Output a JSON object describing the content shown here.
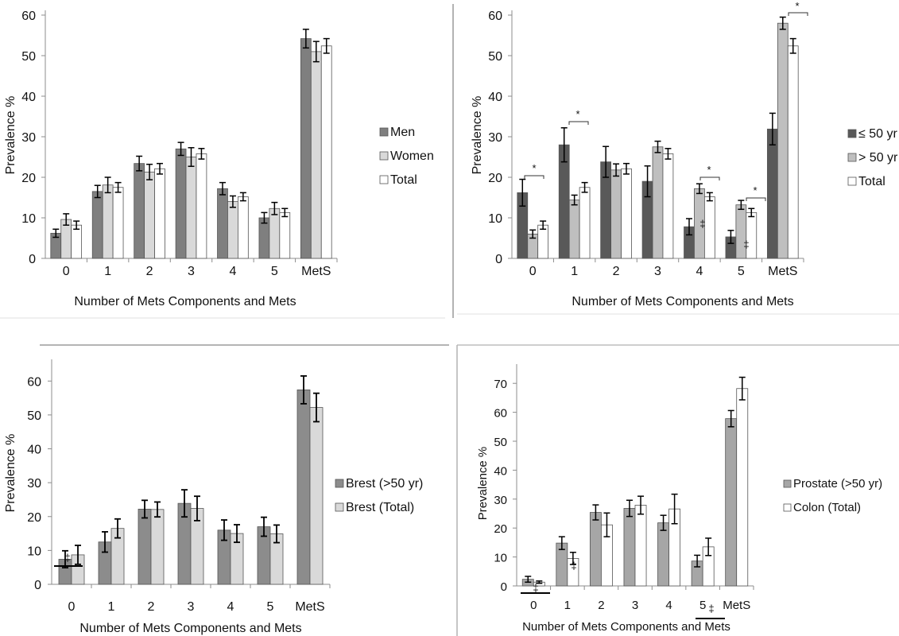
{
  "chart_data": [
    {
      "type": "bar",
      "categories": [
        "0",
        "1",
        "2",
        "3",
        "4",
        "5",
        "MetS"
      ],
      "xlabel": "Number of Mets Components and Mets",
      "ylabel": "Prevalence %",
      "ylim": [
        0,
        60
      ],
      "yticks": [
        0,
        10,
        20,
        30,
        40,
        50,
        60
      ],
      "error_bars": true,
      "legend_position": "right",
      "series": [
        {
          "name": "Men",
          "color": "#7f7f7f",
          "values": [
            6.2,
            16.5,
            23.4,
            27.0,
            17.2,
            10.0,
            54.2
          ],
          "errors": [
            1.0,
            1.5,
            1.8,
            1.6,
            1.5,
            1.3,
            2.3
          ]
        },
        {
          "name": "Women",
          "color": "#d9d9d9",
          "values": [
            9.6,
            18.1,
            21.3,
            25.0,
            14.0,
            12.3,
            51.0
          ],
          "errors": [
            1.4,
            1.9,
            1.9,
            2.3,
            1.4,
            1.5,
            2.5
          ]
        },
        {
          "name": "Total",
          "color": "#ffffff",
          "values": [
            8.2,
            17.5,
            22.1,
            25.8,
            15.2,
            11.3,
            52.4
          ],
          "errors": [
            1.0,
            1.2,
            1.3,
            1.3,
            1.0,
            1.0,
            1.8
          ]
        }
      ]
    },
    {
      "type": "bar",
      "categories": [
        "0",
        "1",
        "2",
        "3",
        "4",
        "5",
        "MetS"
      ],
      "xlabel": "Number of Mets Components and Mets",
      "ylabel": "Prevalence %",
      "ylim": [
        0,
        60
      ],
      "yticks": [
        0,
        10,
        20,
        30,
        40,
        50,
        60
      ],
      "error_bars": true,
      "legend_position": "right",
      "series": [
        {
          "name": "≤ 50 yr",
          "color": "#595959",
          "values": [
            16.2,
            28.0,
            23.8,
            19.0,
            7.8,
            5.3,
            31.9
          ],
          "errors": [
            3.3,
            4.2,
            3.8,
            3.8,
            2.0,
            1.6,
            3.9
          ]
        },
        {
          "name": "> 50 yr",
          "color": "#bfbfbf",
          "values": [
            6.0,
            14.4,
            21.8,
            27.5,
            17.2,
            13.2,
            58.0
          ],
          "errors": [
            1.0,
            1.2,
            1.5,
            1.4,
            1.2,
            1.1,
            1.5
          ]
        },
        {
          "name": "Total",
          "color": "#ffffff",
          "values": [
            8.2,
            17.5,
            22.1,
            25.8,
            15.2,
            11.3,
            52.4
          ],
          "errors": [
            1.0,
            1.2,
            1.3,
            1.3,
            1.0,
            1.0,
            1.8
          ]
        }
      ],
      "annotations": [
        {
          "category": "0",
          "text": "*"
        },
        {
          "category": "1",
          "text": "*"
        },
        {
          "category": "4",
          "text": "*"
        },
        {
          "category": "5",
          "text": "*"
        },
        {
          "category": "MetS",
          "text": "*"
        },
        {
          "category": "4",
          "text": "‡"
        },
        {
          "category": "5",
          "text": "‡"
        }
      ]
    },
    {
      "type": "bar",
      "categories": [
        "0",
        "1",
        "2",
        "3",
        "4",
        "5",
        "MetS"
      ],
      "xlabel": "Number of Mets Components and Mets",
      "ylabel": "Prevalence %",
      "ylim": [
        0,
        65
      ],
      "yticks": [
        0,
        10,
        20,
        30,
        40,
        50,
        60
      ],
      "error_bars": true,
      "legend_position": "right",
      "series": [
        {
          "name": "Brest (>50 yr)",
          "color": "#8c8c8c",
          "values": [
            7.4,
            12.5,
            22.2,
            23.9,
            16.0,
            17.0,
            57.4
          ],
          "errors": [
            2.5,
            3.0,
            2.6,
            4.0,
            3.0,
            2.8,
            4.1
          ]
        },
        {
          "name": "Brest (Total)",
          "color": "#d9d9d9",
          "values": [
            8.7,
            16.5,
            22.1,
            22.4,
            15.0,
            14.9,
            52.2
          ],
          "errors": [
            2.8,
            2.8,
            2.2,
            3.6,
            2.6,
            2.6,
            4.2
          ]
        }
      ],
      "annotations": [
        {
          "category": "0",
          "text": "‡"
        }
      ]
    },
    {
      "type": "bar",
      "categories": [
        "0",
        "1",
        "2",
        "3",
        "4",
        "5",
        "MetS"
      ],
      "xlabel": "Number of Mets Components and Mets",
      "ylabel": "Prevalence %",
      "ylim": [
        0,
        75
      ],
      "yticks": [
        0,
        10,
        20,
        30,
        40,
        50,
        60,
        70
      ],
      "error_bars": true,
      "legend_position": "right",
      "series": [
        {
          "name": "Prostate (>50 yr)",
          "color": "#a6a6a6",
          "values": [
            2.3,
            14.8,
            25.4,
            26.8,
            21.8,
            8.6,
            57.8
          ],
          "errors": [
            1.0,
            2.2,
            2.6,
            2.8,
            2.6,
            2.0,
            2.8
          ]
        },
        {
          "name": "Colon (Total)",
          "color": "#ffffff",
          "values": [
            1.3,
            9.5,
            21.1,
            27.9,
            26.6,
            13.5,
            68.2
          ],
          "errors": [
            0.4,
            2.1,
            4.1,
            3.1,
            5.1,
            3.0,
            3.9
          ]
        }
      ],
      "annotations": [
        {
          "category": "0",
          "text": "‡"
        },
        {
          "category": "1",
          "text": "‡"
        },
        {
          "category": "5",
          "text": "‡"
        }
      ]
    }
  ]
}
